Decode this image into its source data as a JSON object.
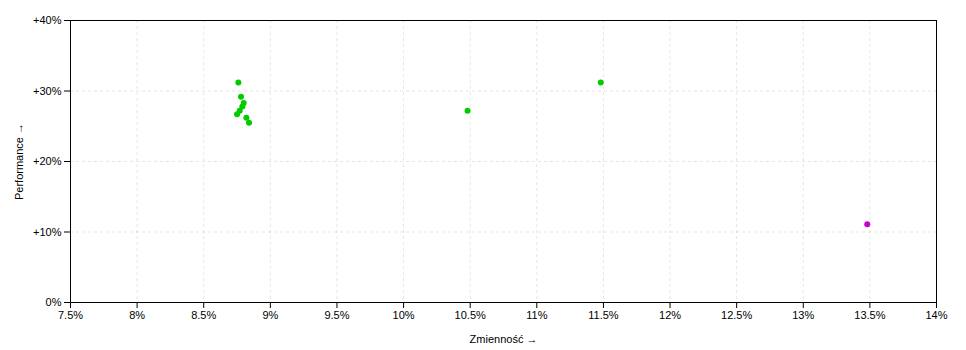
{
  "chart_data": {
    "type": "scatter",
    "xlabel": "Zmienność",
    "ylabel": "Performance",
    "xlim": [
      0.075,
      0.14
    ],
    "ylim": [
      0.0,
      0.4
    ],
    "xticks": [
      {
        "value": 0.075,
        "label": "7.5%"
      },
      {
        "value": 0.08,
        "label": "8%"
      },
      {
        "value": 0.085,
        "label": "8.5%"
      },
      {
        "value": 0.09,
        "label": "9%"
      },
      {
        "value": 0.095,
        "label": "9.5%"
      },
      {
        "value": 0.1,
        "label": "10%"
      },
      {
        "value": 0.105,
        "label": "10.5%"
      },
      {
        "value": 0.11,
        "label": "11%"
      },
      {
        "value": 0.115,
        "label": "11.5%"
      },
      {
        "value": 0.12,
        "label": "12%"
      },
      {
        "value": 0.125,
        "label": "12.5%"
      },
      {
        "value": 0.13,
        "label": "13%"
      },
      {
        "value": 0.135,
        "label": "13.5%"
      },
      {
        "value": 0.14,
        "label": "14%"
      }
    ],
    "yticks": [
      {
        "value": 0.0,
        "label": "0%"
      },
      {
        "value": 0.1,
        "label": "+10%"
      },
      {
        "value": 0.2,
        "label": "+20%"
      },
      {
        "value": 0.3,
        "label": "+30%"
      },
      {
        "value": 0.4,
        "label": "+40%"
      }
    ],
    "grid": true,
    "series": [
      {
        "color": "#00cc00",
        "x": [
          0.0876,
          0.0878,
          0.088,
          0.0879,
          0.0877,
          0.0875,
          0.0882,
          0.0884,
          0.1048,
          0.1148
        ],
        "values": [
          0.312,
          0.292,
          0.283,
          0.278,
          0.272,
          0.267,
          0.262,
          0.255,
          0.272,
          0.312
        ]
      },
      {
        "color": "#cc00cc",
        "x": [
          0.1348
        ],
        "values": [
          0.111
        ]
      }
    ]
  }
}
